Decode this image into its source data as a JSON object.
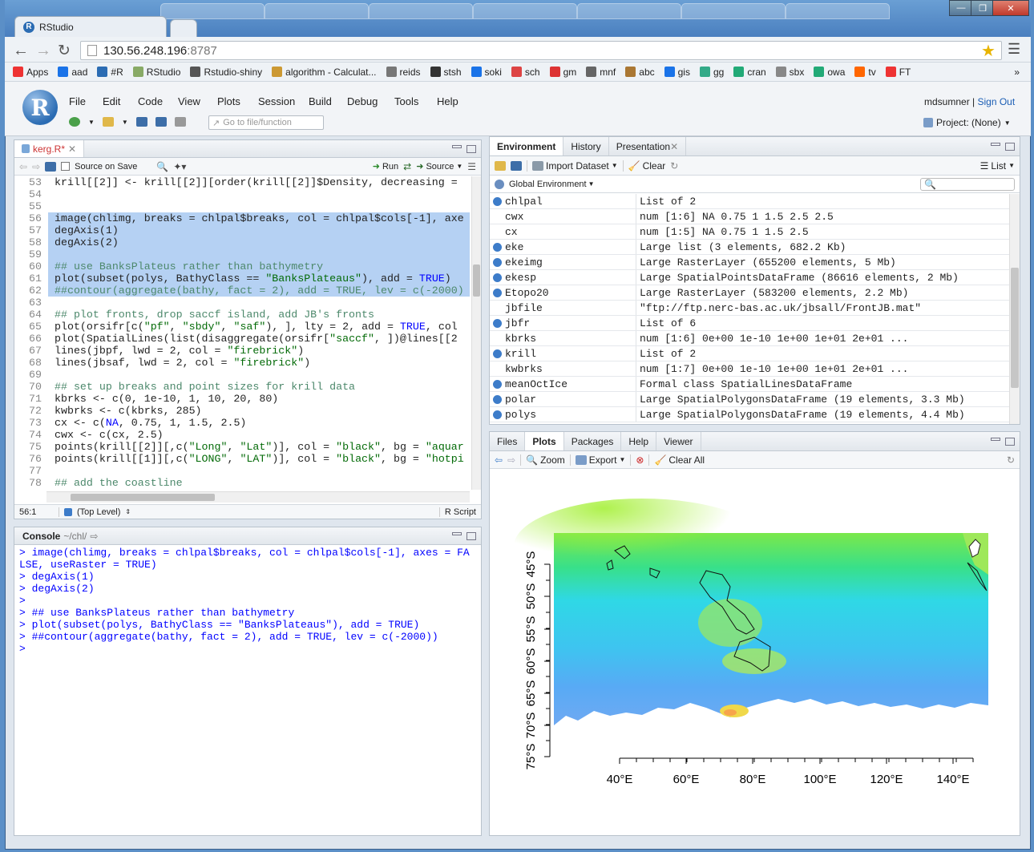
{
  "browser": {
    "tab_title": "RStudio",
    "url_host": "130.56.248.196",
    "url_port": ":8787",
    "bookmarks": [
      "Apps",
      "aad",
      "#R",
      "RStudio",
      "Rstudio-shiny",
      "algorithm - Calculat...",
      "reids",
      "stsh",
      "soki",
      "sch",
      "gm",
      "mnf",
      "abc",
      "gis",
      "gg",
      "cran",
      "sbx",
      "owa",
      "tv",
      "FT"
    ],
    "bookmarks_more": "»"
  },
  "rstudio": {
    "menu": [
      "File",
      "Edit",
      "Code",
      "View",
      "Plots",
      "Session",
      "Build",
      "Debug",
      "Tools",
      "Help"
    ],
    "user": "mdsumner",
    "signout": "Sign Out",
    "goto_placeholder": "Go to file/function",
    "project": "Project: (None)"
  },
  "editor": {
    "tab": "kerg.R*",
    "source_on_save": "Source on Save",
    "run": "Run",
    "source": "Source",
    "status_pos": "56:1",
    "status_scope": "(Top Level)",
    "status_type": "R Script",
    "lines": [
      {
        "n": "53",
        "t": "krill[[2]] <- krill[[2]][order(krill[[2]]$Density, decreasing = ",
        "sel": false
      },
      {
        "n": "54",
        "t": "",
        "sel": false
      },
      {
        "n": "55",
        "t": "",
        "sel": false
      },
      {
        "n": "56",
        "t": "image(chlimg, breaks = chlpal$breaks, col = chlpal$cols[-1], axe",
        "sel": true
      },
      {
        "n": "57",
        "t": "degAxis(1)",
        "sel": true
      },
      {
        "n": "58",
        "t": "degAxis(2)",
        "sel": true
      },
      {
        "n": "59",
        "t": "",
        "sel": true
      },
      {
        "n": "60",
        "t": "## use BanksPlateus rather than bathymetry",
        "sel": true
      },
      {
        "n": "61",
        "t": "plot(subset(polys, BathyClass == \"BanksPlateaus\"), add = TRUE)",
        "sel": true
      },
      {
        "n": "62",
        "t": "##contour(aggregate(bathy, fact = 2), add = TRUE, lev = c(-2000)",
        "sel": true
      },
      {
        "n": "63",
        "t": "",
        "sel": false
      },
      {
        "n": "64",
        "t": "## plot fronts, drop saccf island, add JB's fronts",
        "sel": false
      },
      {
        "n": "65",
        "t": "plot(orsifr[c(\"pf\", \"sbdy\", \"saf\"), ], lty = 2, add = TRUE, col",
        "sel": false
      },
      {
        "n": "66",
        "t": "plot(SpatialLines(list(disaggregate(orsifr[\"saccf\", ])@lines[[2",
        "sel": false
      },
      {
        "n": "67",
        "t": "lines(jbpf, lwd = 2, col = \"firebrick\")",
        "sel": false
      },
      {
        "n": "68",
        "t": "lines(jbsaf, lwd = 2, col = \"firebrick\")",
        "sel": false
      },
      {
        "n": "69",
        "t": "",
        "sel": false
      },
      {
        "n": "70",
        "t": "## set up breaks and point sizes for krill data",
        "sel": false
      },
      {
        "n": "71",
        "t": "kbrks <- c(0, 1e-10, 1, 10, 20, 80)",
        "sel": false
      },
      {
        "n": "72",
        "t": "kwbrks <- c(kbrks, 285)",
        "sel": false
      },
      {
        "n": "73",
        "t": "cx <- c(NA, 0.75, 1, 1.5, 2.5)",
        "sel": false
      },
      {
        "n": "74",
        "t": "cwx <- c(cx, 2.5)",
        "sel": false
      },
      {
        "n": "75",
        "t": "points(krill[[2]][,c(\"Long\", \"Lat\")], col = \"black\", bg = \"aquar",
        "sel": false
      },
      {
        "n": "76",
        "t": "points(krill[[1]][,c(\"LONG\", \"LAT\")], col = \"black\", bg = \"hotpi",
        "sel": false
      },
      {
        "n": "77",
        "t": "",
        "sel": false
      },
      {
        "n": "78",
        "t": "## add the coastline",
        "sel": false
      },
      {
        "n": "79",
        "t": "",
        "sel": false
      }
    ]
  },
  "console": {
    "title": "Console",
    "path": "~/chl/",
    "lines": [
      "> image(chlimg, breaks = chlpal$breaks, col = chlpal$cols[-1], axes = FA",
      "LSE, useRaster = TRUE)",
      "> degAxis(1)",
      "> degAxis(2)",
      ">",
      "> ## use BanksPlateus rather than bathymetry",
      "> plot(subset(polys, BathyClass == \"BanksPlateaus\"), add = TRUE)",
      "> ##contour(aggregate(bathy, fact = 2), add = TRUE, lev = c(-2000))",
      ">"
    ]
  },
  "environment": {
    "tabs": [
      "Environment",
      "History",
      "Presentation"
    ],
    "import": "Import Dataset",
    "clear": "Clear",
    "list": "List",
    "scope": "Global Environment",
    "rows": [
      {
        "name": "chlpal",
        "value": "List of 2",
        "icon": true
      },
      {
        "name": "cwx",
        "value": "num [1:6] NA 0.75 1 1.5 2.5 2.5",
        "icon": false
      },
      {
        "name": "cx",
        "value": "num [1:5] NA 0.75 1 1.5 2.5",
        "icon": false
      },
      {
        "name": "eke",
        "value": "Large list (3 elements, 682.2 Kb)",
        "icon": true
      },
      {
        "name": "ekeimg",
        "value": "Large RasterLayer (655200 elements, 5 Mb)",
        "icon": true
      },
      {
        "name": "ekesp",
        "value": "Large SpatialPointsDataFrame (86616 elements, 2 Mb)",
        "icon": true
      },
      {
        "name": "Etopo20",
        "value": "Large RasterLayer (583200 elements, 2.2 Mb)",
        "icon": true
      },
      {
        "name": "jbfile",
        "value": "\"ftp://ftp.nerc-bas.ac.uk/jbsall/FrontJB.mat\"",
        "icon": false
      },
      {
        "name": "jbfr",
        "value": "List of 6",
        "icon": true
      },
      {
        "name": "kbrks",
        "value": "num [1:6] 0e+00 1e-10 1e+00 1e+01 2e+01 ...",
        "icon": false
      },
      {
        "name": "krill",
        "value": "List of 2",
        "icon": true
      },
      {
        "name": "kwbrks",
        "value": "num [1:7] 0e+00 1e-10 1e+00 1e+01 2e+01 ...",
        "icon": false
      },
      {
        "name": "meanOctIce",
        "value": "Formal class SpatialLinesDataFrame",
        "icon": true
      },
      {
        "name": "polar",
        "value": "Large SpatialPolygonsDataFrame (19 elements, 3.3 Mb)",
        "icon": true
      },
      {
        "name": "polys",
        "value": "Large SpatialPolygonsDataFrame (19 elements, 4.4 Mb)",
        "icon": true
      }
    ]
  },
  "files": {
    "tabs": [
      "Files",
      "Plots",
      "Packages",
      "Help",
      "Viewer"
    ],
    "zoom": "Zoom",
    "export": "Export",
    "clear_all": "Clear All"
  },
  "plot": {
    "x_ticks": [
      "40°E",
      "60°E",
      "80°E",
      "100°E",
      "120°E",
      "140°E"
    ],
    "y_ticks": [
      "75°S",
      "70°S",
      "65°S",
      "60°S",
      "55°S",
      "50°S",
      "45°S"
    ]
  }
}
